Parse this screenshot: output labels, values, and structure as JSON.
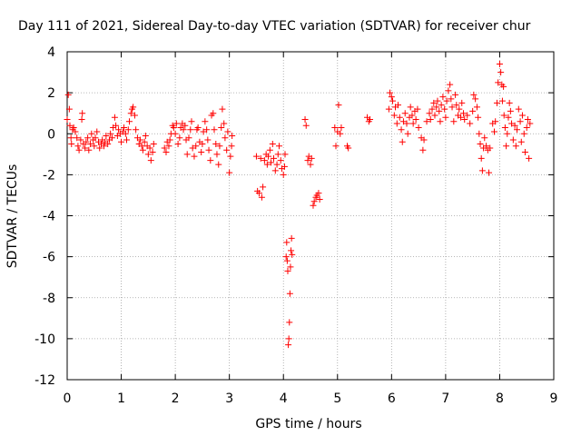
{
  "chart_data": {
    "type": "scatter",
    "title": "Day 111 of 2021, Sidereal Day-to-day VTEC variation (SDTVAR) for receiver chur",
    "xlabel": "GPS time / hours",
    "ylabel": "SDTVAR / TECUs",
    "xlim": [
      0,
      9
    ],
    "ylim": [
      -12,
      4
    ],
    "xticks": [
      0,
      1,
      2,
      3,
      4,
      5,
      6,
      7,
      8,
      9
    ],
    "yticks": [
      -12,
      -10,
      -8,
      -6,
      -4,
      -2,
      0,
      2,
      4
    ],
    "xtick_labels": [
      "0",
      "1",
      "2",
      "3",
      "4",
      "5",
      "6",
      "7",
      "8",
      "9"
    ],
    "ytick_labels": [
      "-12",
      "-10",
      "-8",
      "-6",
      "-4",
      "-2",
      "0",
      "2",
      "4"
    ],
    "grid": true,
    "marker": "+",
    "series": [
      {
        "name": "SDTVAR",
        "color": "#ff0000",
        "points": [
          [
            0.0,
            0.7
          ],
          [
            0.02,
            1.9
          ],
          [
            0.04,
            1.2
          ],
          [
            0.05,
            0.4
          ],
          [
            0.07,
            -0.2
          ],
          [
            0.08,
            -0.5
          ],
          [
            0.1,
            0.2
          ],
          [
            0.12,
            0.3
          ],
          [
            0.15,
            0.1
          ],
          [
            0.18,
            -0.2
          ],
          [
            0.2,
            -0.6
          ],
          [
            0.22,
            -0.8
          ],
          [
            0.25,
            -0.3
          ],
          [
            0.27,
            0.7
          ],
          [
            0.28,
            1.0
          ],
          [
            0.3,
            -0.5
          ],
          [
            0.33,
            -0.7
          ],
          [
            0.35,
            -0.4
          ],
          [
            0.38,
            -0.2
          ],
          [
            0.4,
            -0.8
          ],
          [
            0.43,
            -0.5
          ],
          [
            0.45,
            0.0
          ],
          [
            0.48,
            -0.3
          ],
          [
            0.5,
            -0.6
          ],
          [
            0.52,
            -0.2
          ],
          [
            0.55,
            0.1
          ],
          [
            0.58,
            -0.4
          ],
          [
            0.6,
            -0.7
          ],
          [
            0.63,
            -0.5
          ],
          [
            0.65,
            -0.3
          ],
          [
            0.68,
            -0.6
          ],
          [
            0.7,
            -0.4
          ],
          [
            0.72,
            -0.1
          ],
          [
            0.75,
            -0.5
          ],
          [
            0.78,
            -0.3
          ],
          [
            0.8,
            0.0
          ],
          [
            0.83,
            -0.2
          ],
          [
            0.85,
            0.3
          ],
          [
            0.88,
            0.8
          ],
          [
            0.9,
            0.4
          ],
          [
            0.93,
            -0.1
          ],
          [
            0.95,
            0.2
          ],
          [
            0.98,
            0.0
          ],
          [
            1.0,
            -0.4
          ],
          [
            1.03,
            0.1
          ],
          [
            1.05,
            0.3
          ],
          [
            1.08,
            0.0
          ],
          [
            1.1,
            -0.3
          ],
          [
            1.13,
            0.2
          ],
          [
            1.15,
            0.6
          ],
          [
            1.18,
            1.0
          ],
          [
            1.2,
            1.2
          ],
          [
            1.22,
            1.3
          ],
          [
            1.25,
            0.9
          ],
          [
            1.27,
            0.2
          ],
          [
            1.3,
            -0.2
          ],
          [
            1.33,
            -0.5
          ],
          [
            1.35,
            -0.3
          ],
          [
            1.38,
            -0.6
          ],
          [
            1.4,
            -0.8
          ],
          [
            1.43,
            -0.4
          ],
          [
            1.45,
            -0.1
          ],
          [
            1.48,
            -0.6
          ],
          [
            1.5,
            -1.0
          ],
          [
            1.53,
            -0.7
          ],
          [
            1.55,
            -1.3
          ],
          [
            1.58,
            -0.9
          ],
          [
            1.6,
            -0.5
          ],
          [
            1.8,
            -0.7
          ],
          [
            1.83,
            -0.9
          ],
          [
            1.85,
            -0.4
          ],
          [
            1.88,
            -0.6
          ],
          [
            1.9,
            -0.3
          ],
          [
            1.92,
            0.0
          ],
          [
            1.95,
            0.4
          ],
          [
            1.97,
            0.3
          ],
          [
            2.0,
            0.0
          ],
          [
            2.02,
            0.5
          ],
          [
            2.05,
            -0.5
          ],
          [
            2.08,
            -0.2
          ],
          [
            2.1,
            0.3
          ],
          [
            2.13,
            0.5
          ],
          [
            2.15,
            0.2
          ],
          [
            2.18,
            0.4
          ],
          [
            2.2,
            -0.3
          ],
          [
            2.22,
            -1.0
          ],
          [
            2.25,
            -0.2
          ],
          [
            2.28,
            0.2
          ],
          [
            2.3,
            0.6
          ],
          [
            2.32,
            -0.7
          ],
          [
            2.35,
            -1.1
          ],
          [
            2.38,
            -0.6
          ],
          [
            2.4,
            0.2
          ],
          [
            2.42,
            0.3
          ],
          [
            2.45,
            -0.4
          ],
          [
            2.48,
            -0.9
          ],
          [
            2.5,
            -0.5
          ],
          [
            2.52,
            0.1
          ],
          [
            2.55,
            0.6
          ],
          [
            2.58,
            0.2
          ],
          [
            2.6,
            -0.3
          ],
          [
            2.62,
            -0.8
          ],
          [
            2.65,
            -1.3
          ],
          [
            2.67,
            0.9
          ],
          [
            2.7,
            1.0
          ],
          [
            2.72,
            0.2
          ],
          [
            2.75,
            -0.5
          ],
          [
            2.77,
            -1.0
          ],
          [
            2.8,
            -1.5
          ],
          [
            2.82,
            -0.6
          ],
          [
            2.85,
            0.3
          ],
          [
            2.87,
            1.2
          ],
          [
            2.9,
            0.5
          ],
          [
            2.92,
            -0.2
          ],
          [
            2.95,
            -0.8
          ],
          [
            2.97,
            0.1
          ],
          [
            3.0,
            -1.9
          ],
          [
            3.02,
            -1.1
          ],
          [
            3.04,
            -0.6
          ],
          [
            3.05,
            -0.1
          ],
          [
            3.5,
            -1.1
          ],
          [
            3.52,
            -2.8
          ],
          [
            3.55,
            -2.9
          ],
          [
            3.58,
            -1.2
          ],
          [
            3.6,
            -3.1
          ],
          [
            3.62,
            -2.6
          ],
          [
            3.65,
            -1.3
          ],
          [
            3.68,
            -1.0
          ],
          [
            3.7,
            -1.5
          ],
          [
            3.72,
            -1.1
          ],
          [
            3.75,
            -0.8
          ],
          [
            3.77,
            -1.4
          ],
          [
            3.8,
            -0.5
          ],
          [
            3.82,
            -1.2
          ],
          [
            3.85,
            -1.8
          ],
          [
            3.88,
            -1.5
          ],
          [
            3.9,
            -1.0
          ],
          [
            3.92,
            -0.6
          ],
          [
            3.95,
            -1.3
          ],
          [
            3.97,
            -1.7
          ],
          [
            4.0,
            -2.0
          ],
          [
            4.02,
            -1.6
          ],
          [
            4.03,
            -1.0
          ],
          [
            4.05,
            -6.0
          ],
          [
            4.06,
            -5.3
          ],
          [
            4.07,
            -6.2
          ],
          [
            4.08,
            -6.7
          ],
          [
            4.09,
            -10.3
          ],
          [
            4.1,
            -10.0
          ],
          [
            4.11,
            -9.2
          ],
          [
            4.12,
            -7.8
          ],
          [
            4.13,
            -6.5
          ],
          [
            4.14,
            -5.7
          ],
          [
            4.15,
            -5.1
          ],
          [
            4.16,
            -5.9
          ],
          [
            4.4,
            0.7
          ],
          [
            4.42,
            0.4
          ],
          [
            4.45,
            -1.3
          ],
          [
            4.47,
            -1.1
          ],
          [
            4.5,
            -1.5
          ],
          [
            4.52,
            -1.2
          ],
          [
            4.55,
            -3.5
          ],
          [
            4.57,
            -3.3
          ],
          [
            4.6,
            -3.1
          ],
          [
            4.62,
            -3.0
          ],
          [
            4.65,
            -2.9
          ],
          [
            4.67,
            -3.2
          ],
          [
            4.95,
            0.3
          ],
          [
            4.97,
            -0.6
          ],
          [
            5.0,
            0.1
          ],
          [
            5.02,
            1.4
          ],
          [
            5.05,
            0.0
          ],
          [
            5.07,
            0.3
          ],
          [
            5.18,
            -0.6
          ],
          [
            5.2,
            -0.7
          ],
          [
            5.55,
            0.8
          ],
          [
            5.58,
            0.6
          ],
          [
            5.6,
            0.7
          ],
          [
            5.95,
            1.2
          ],
          [
            5.97,
            2.0
          ],
          [
            6.0,
            1.8
          ],
          [
            6.02,
            1.6
          ],
          [
            6.05,
            0.9
          ],
          [
            6.07,
            1.3
          ],
          [
            6.1,
            0.5
          ],
          [
            6.12,
            1.4
          ],
          [
            6.15,
            0.8
          ],
          [
            6.18,
            0.2
          ],
          [
            6.2,
            -0.4
          ],
          [
            6.22,
            0.6
          ],
          [
            6.25,
            1.0
          ],
          [
            6.28,
            0.5
          ],
          [
            6.3,
            0.0
          ],
          [
            6.33,
            0.8
          ],
          [
            6.35,
            1.3
          ],
          [
            6.38,
            0.9
          ],
          [
            6.4,
            0.5
          ],
          [
            6.43,
            1.1
          ],
          [
            6.45,
            0.7
          ],
          [
            6.48,
            1.2
          ],
          [
            6.5,
            0.3
          ],
          [
            6.55,
            -0.2
          ],
          [
            6.58,
            -0.8
          ],
          [
            6.6,
            -0.3
          ],
          [
            6.65,
            0.6
          ],
          [
            6.7,
            1.0
          ],
          [
            6.72,
            0.7
          ],
          [
            6.75,
            1.2
          ],
          [
            6.78,
            1.5
          ],
          [
            6.8,
            0.9
          ],
          [
            6.83,
            1.3
          ],
          [
            6.85,
            1.6
          ],
          [
            6.88,
            1.1
          ],
          [
            6.9,
            0.6
          ],
          [
            6.92,
            1.4
          ],
          [
            6.95,
            1.8
          ],
          [
            6.98,
            1.2
          ],
          [
            7.0,
            0.8
          ],
          [
            7.02,
            1.6
          ],
          [
            7.05,
            2.1
          ],
          [
            7.08,
            2.4
          ],
          [
            7.1,
            1.7
          ],
          [
            7.12,
            1.3
          ],
          [
            7.15,
            0.6
          ],
          [
            7.18,
            1.9
          ],
          [
            7.2,
            1.4
          ],
          [
            7.23,
            0.9
          ],
          [
            7.25,
            1.2
          ],
          [
            7.28,
            0.8
          ],
          [
            7.3,
            1.5
          ],
          [
            7.33,
            1.0
          ],
          [
            7.35,
            0.7
          ],
          [
            7.4,
            0.9
          ],
          [
            7.45,
            0.5
          ],
          [
            7.5,
            1.1
          ],
          [
            7.52,
            1.9
          ],
          [
            7.55,
            1.7
          ],
          [
            7.58,
            1.3
          ],
          [
            7.6,
            0.8
          ],
          [
            7.62,
            0.0
          ],
          [
            7.64,
            -0.5
          ],
          [
            7.66,
            -1.2
          ],
          [
            7.68,
            -1.8
          ],
          [
            7.7,
            -0.7
          ],
          [
            7.72,
            -0.2
          ],
          [
            7.75,
            -0.6
          ],
          [
            7.78,
            -0.8
          ],
          [
            7.8,
            -1.9
          ],
          [
            7.82,
            -0.7
          ],
          [
            7.87,
            0.5
          ],
          [
            7.9,
            0.1
          ],
          [
            7.92,
            0.6
          ],
          [
            7.95,
            1.5
          ],
          [
            7.97,
            2.5
          ],
          [
            8.0,
            3.4
          ],
          [
            8.02,
            3.0
          ],
          [
            8.04,
            2.4
          ],
          [
            8.05,
            1.6
          ],
          [
            8.07,
            2.3
          ],
          [
            8.08,
            0.9
          ],
          [
            8.1,
            0.3
          ],
          [
            8.12,
            -0.6
          ],
          [
            8.14,
            0.0
          ],
          [
            8.16,
            0.8
          ],
          [
            8.18,
            1.5
          ],
          [
            8.2,
            1.1
          ],
          [
            8.22,
            0.5
          ],
          [
            8.25,
            -0.3
          ],
          [
            8.28,
            0.4
          ],
          [
            8.3,
            -0.6
          ],
          [
            8.32,
            0.2
          ],
          [
            8.35,
            1.2
          ],
          [
            8.38,
            0.6
          ],
          [
            8.4,
            -0.4
          ],
          [
            8.42,
            0.9
          ],
          [
            8.45,
            0.0
          ],
          [
            8.47,
            -0.9
          ],
          [
            8.5,
            0.3
          ],
          [
            8.52,
            0.7
          ],
          [
            8.54,
            -1.2
          ],
          [
            8.56,
            0.5
          ]
        ]
      }
    ]
  }
}
